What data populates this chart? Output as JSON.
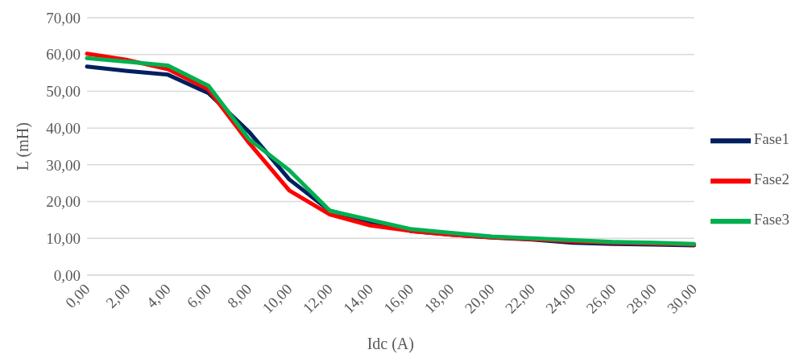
{
  "chart_data": {
    "type": "line",
    "xlabel": "Idc (A)",
    "ylabel": "L (mH)",
    "categories": [
      "0,00",
      "2,00",
      "4,00",
      "6,00",
      "8,00",
      "10,00",
      "12,00",
      "14,00",
      "16,00",
      "18,00",
      "20,00",
      "22,00",
      "24,00",
      "26,00",
      "28,00",
      "30,00"
    ],
    "series": [
      {
        "name": "Fase1",
        "color": "#002060",
        "values": [
          56.7,
          55.5,
          54.5,
          49.5,
          39,
          26,
          17.5,
          14.5,
          12,
          11,
          10.2,
          9.7,
          8.8,
          8.5,
          8.3,
          8.1
        ]
      },
      {
        "name": "Fase2",
        "color": "#ff0000",
        "values": [
          60.2,
          58.5,
          56,
          50.5,
          36,
          23,
          16.5,
          13.5,
          12,
          11,
          10.3,
          9.8,
          9.2,
          8.8,
          8.6,
          8.3
        ]
      },
      {
        "name": "Fase3",
        "color": "#00b050",
        "values": [
          59,
          58,
          57,
          51.5,
          37,
          28.5,
          17.5,
          15,
          12.5,
          11.5,
          10.5,
          10,
          9.5,
          9,
          8.8,
          8.5
        ]
      }
    ],
    "ylim": [
      0,
      70
    ],
    "yticks": [
      {
        "value": 0,
        "label": "0,00"
      },
      {
        "value": 10,
        "label": "10,00"
      },
      {
        "value": 20,
        "label": "20,00"
      },
      {
        "value": 30,
        "label": "30,00"
      },
      {
        "value": 40,
        "label": "40,00"
      },
      {
        "value": 50,
        "label": "50,00"
      },
      {
        "value": 60,
        "label": "60,00"
      },
      {
        "value": 70,
        "label": "70,00"
      }
    ],
    "grid": "y",
    "legend": "right",
    "marker": "none",
    "line_style": "solid"
  }
}
